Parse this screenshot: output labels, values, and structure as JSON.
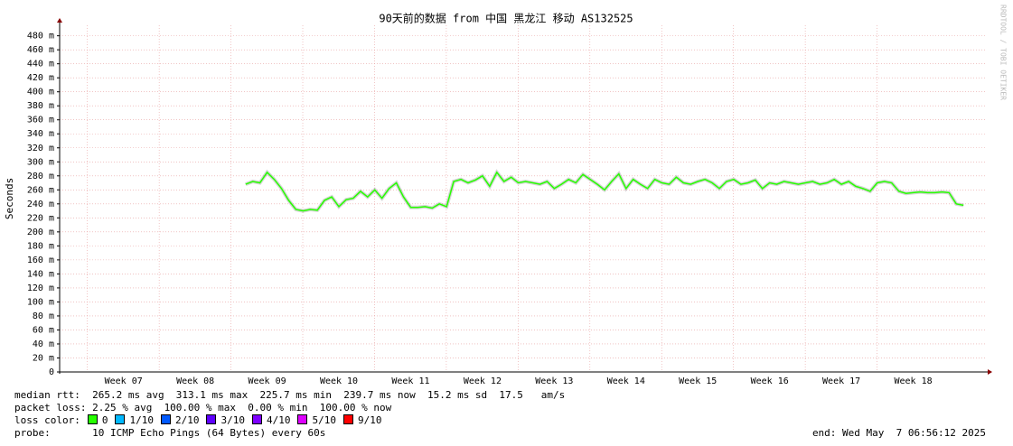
{
  "chart_data": {
    "type": "line",
    "title": "90天前的数据 from 中国 黑龙江 移动 AS132525",
    "y_label": "Seconds",
    "watermark": "RRDTOOL / TOBI OETIKER",
    "color": "#26ff00",
    "xlim": [
      6.11,
      19.0
    ],
    "xticks": [
      {
        "value": 7,
        "label": "Week 07"
      },
      {
        "value": 8,
        "label": "Week 08"
      },
      {
        "value": 9,
        "label": "Week 09"
      },
      {
        "value": 10,
        "label": "Week 10"
      },
      {
        "value": 11,
        "label": "Week 11"
      },
      {
        "value": 12,
        "label": "Week 12"
      },
      {
        "value": 13,
        "label": "Week 13"
      },
      {
        "value": 14,
        "label": "Week 14"
      },
      {
        "value": 15,
        "label": "Week 15"
      },
      {
        "value": 16,
        "label": "Week 16"
      },
      {
        "value": 17,
        "label": "Week 17"
      },
      {
        "value": 18,
        "label": "Week 18"
      }
    ],
    "ylim": [
      0,
      495
    ],
    "yticks": [
      0,
      {
        "value": 20,
        "label": "20 m"
      },
      {
        "value": 40,
        "label": "40 m"
      },
      {
        "value": 60,
        "label": "60 m"
      },
      {
        "value": 80,
        "label": "80 m"
      },
      {
        "value": 100,
        "label": "100 m"
      },
      {
        "value": 120,
        "label": "120 m"
      },
      {
        "value": 140,
        "label": "140 m"
      },
      {
        "value": 160,
        "label": "160 m"
      },
      {
        "value": 180,
        "label": "180 m"
      },
      {
        "value": 200,
        "label": "200 m"
      },
      {
        "value": 220,
        "label": "220 m"
      },
      {
        "value": 240,
        "label": "240 m"
      },
      {
        "value": 260,
        "label": "260 m"
      },
      {
        "value": 280,
        "label": "280 m"
      },
      {
        "value": 300,
        "label": "300 m"
      },
      {
        "value": 320,
        "label": "320 m"
      },
      {
        "value": 340,
        "label": "340 m"
      },
      {
        "value": 360,
        "label": "360 m"
      },
      {
        "value": 380,
        "label": "380 m"
      },
      {
        "value": 400,
        "label": "400 m"
      },
      {
        "value": 420,
        "label": "420 m"
      },
      {
        "value": 440,
        "label": "440 m"
      },
      {
        "value": 460,
        "label": "460 m"
      },
      {
        "value": 480,
        "label": "480 m"
      }
    ],
    "grid": true,
    "x": [
      8.7,
      8.8,
      8.9,
      9.0,
      9.1,
      9.2,
      9.3,
      9.4,
      9.5,
      9.6,
      9.7,
      9.8,
      9.9,
      10.0,
      10.1,
      10.2,
      10.3,
      10.4,
      10.5,
      10.6,
      10.7,
      10.8,
      10.9,
      11.0,
      11.1,
      11.2,
      11.3,
      11.4,
      11.5,
      11.6,
      11.7,
      11.8,
      11.9,
      12.0,
      12.1,
      12.2,
      12.3,
      12.4,
      12.5,
      12.6,
      12.7,
      12.8,
      12.9,
      13.0,
      13.1,
      13.2,
      13.3,
      13.4,
      13.5,
      13.6,
      13.7,
      13.8,
      13.9,
      14.0,
      14.1,
      14.2,
      14.3,
      14.4,
      14.5,
      14.6,
      14.7,
      14.8,
      14.9,
      15.0,
      15.1,
      15.2,
      15.3,
      15.4,
      15.5,
      15.6,
      15.7,
      15.8,
      15.9,
      16.0,
      16.1,
      16.2,
      16.3,
      16.4,
      16.5,
      16.6,
      16.7,
      16.8,
      16.9,
      17.0,
      17.1,
      17.2,
      17.3,
      17.4,
      17.5,
      17.6,
      17.7,
      17.8,
      17.9,
      18.0,
      18.1,
      18.2,
      18.3,
      18.4,
      18.5,
      18.6,
      18.7
    ],
    "values": [
      268,
      272,
      270,
      285,
      275,
      262,
      245,
      232,
      230,
      232,
      231,
      245,
      250,
      236,
      246,
      248,
      258,
      250,
      260,
      248,
      262,
      270,
      250,
      235,
      235,
      236,
      234,
      240,
      236,
      272,
      275,
      270,
      274,
      280,
      265,
      285,
      272,
      278,
      270,
      272,
      270,
      268,
      272,
      262,
      268,
      275,
      270,
      282,
      275,
      268,
      260,
      272,
      283,
      262,
      275,
      268,
      262,
      275,
      270,
      268,
      278,
      270,
      268,
      272,
      275,
      270,
      262,
      272,
      275,
      268,
      270,
      274,
      262,
      270,
      268,
      272,
      270,
      268,
      270,
      272,
      268,
      270,
      275,
      268,
      272,
      265,
      262,
      258,
      270,
      272,
      270,
      258,
      255,
      256,
      257,
      256,
      256,
      257,
      256,
      240,
      238
    ],
    "stats": [
      "median rtt:  265.2 ms avg  313.1 ms max  225.7 ms min  239.7 ms now  15.2 ms sd  17.5   am/s",
      "packet loss: 2.25 % avg  100.00 % max  0.00 % min  100.00 % now"
    ],
    "loss_label": "loss color:",
    "loss_colors": [
      {
        "name": "0",
        "color": "#26ff00"
      },
      {
        "name": "1/10",
        "color": "#00b8ff"
      },
      {
        "name": "2/10",
        "color": "#0059ff"
      },
      {
        "name": "3/10",
        "color": "#5e00ff"
      },
      {
        "name": "4/10",
        "color": "#7e00ff"
      },
      {
        "name": "5/10",
        "color": "#dd00ff"
      },
      {
        "name": "9/10",
        "color": "#ff0000"
      }
    ],
    "probe": "probe:       10 ICMP Echo Pings (64 Bytes) every 60s",
    "end": "end: Wed May  7 06:56:12 2025"
  }
}
